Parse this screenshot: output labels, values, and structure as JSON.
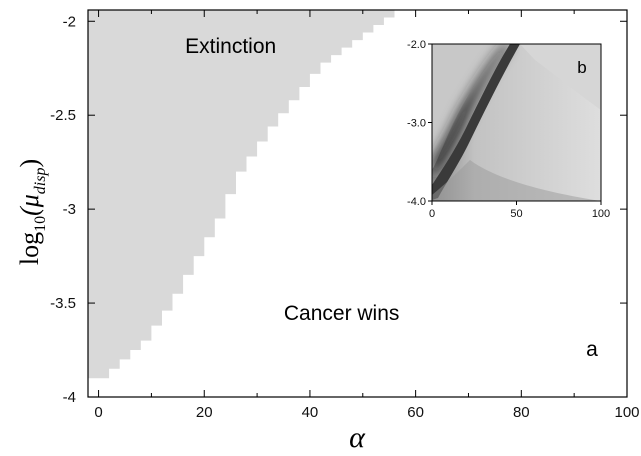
{
  "chart_data": [
    {
      "panel": "a",
      "type": "area",
      "xlabel": "α",
      "ylabel_main": "log",
      "ylabel_sub": "10",
      "ylabel_rest": "(μ",
      "ylabel_subscript": "disp",
      "ylabel_close": ")",
      "xlim": [
        -2,
        100
      ],
      "ylim": [
        -4,
        -1.94
      ],
      "xticks": [
        "0",
        "20",
        "40",
        "60",
        "80",
        "100"
      ],
      "xtick_values": [
        0,
        20,
        40,
        60,
        80,
        100
      ],
      "yticks": [
        "-2",
        "-2.5",
        "-3",
        "-3.5",
        "-4"
      ],
      "ytick_values": [
        -2,
        -2.5,
        -3,
        -3.5,
        -4
      ],
      "fill_color": "#d9d9d9",
      "boundary_step_x": [
        -2,
        0,
        2,
        4,
        6,
        8,
        10,
        12,
        14,
        16,
        18,
        20,
        22,
        24,
        26,
        28,
        30,
        32,
        34,
        36,
        38,
        40,
        42,
        44,
        46,
        48,
        50,
        52,
        54,
        56,
        58,
        60
      ],
      "boundary_step_y": [
        -3.9,
        -3.9,
        -3.85,
        -3.8,
        -3.75,
        -3.7,
        -3.62,
        -3.54,
        -3.45,
        -3.35,
        -3.25,
        -3.15,
        -3.05,
        -2.92,
        -2.8,
        -2.72,
        -2.64,
        -2.56,
        -2.49,
        -2.42,
        -2.35,
        -2.28,
        -2.22,
        -2.18,
        -2.14,
        -2.1,
        -2.06,
        -2.02,
        -1.98,
        -1.94,
        -1.94,
        -1.94
      ],
      "regions": [
        {
          "name": "Extinction",
          "x": 25,
          "y": -2.17
        },
        {
          "name": "Cancer wins",
          "x": 46,
          "y": -3.59
        }
      ],
      "panel_label": "a"
    },
    {
      "panel": "b",
      "type": "heatmap",
      "xlim": [
        0,
        100
      ],
      "ylim": [
        -4.0,
        -2.0
      ],
      "xticks": [
        "0",
        "50",
        "100"
      ],
      "xtick_values": [
        0,
        50,
        100
      ],
      "yticks": [
        "-2.0",
        "-3.0",
        "-4.0"
      ],
      "ytick_values": [
        -2.0,
        -3.0,
        -4.0
      ],
      "panel_label": "b"
    }
  ]
}
